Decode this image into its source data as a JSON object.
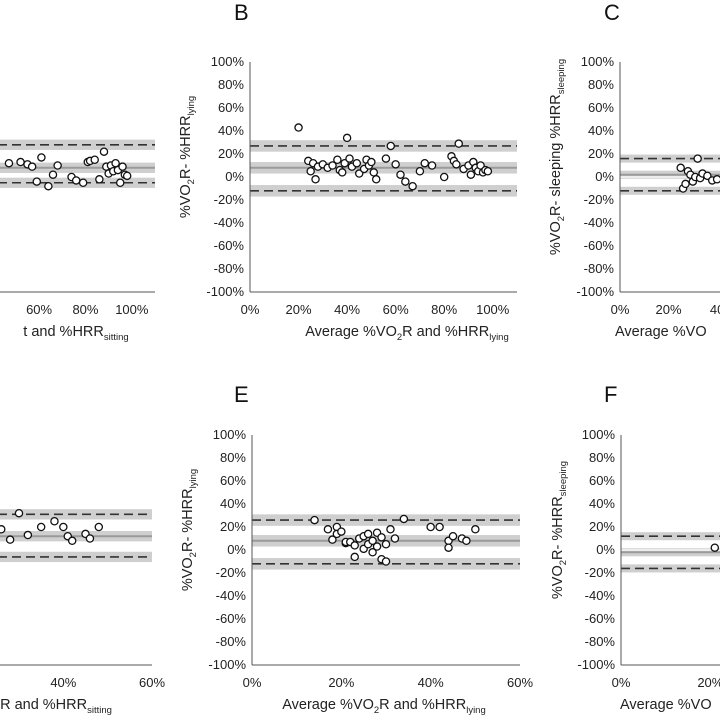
{
  "figure": {
    "panel_letters": [
      "B",
      "C",
      "E",
      "F"
    ]
  },
  "chart_data": [
    {
      "type": "scatter",
      "panel": "A",
      "xlabel_parts": [
        {
          "t": "t and %HRR"
        },
        {
          "t": "sitting",
          "sub": true
        }
      ],
      "xticks": [
        "60%",
        "80%",
        "100%"
      ],
      "xlim": [
        0,
        1.1
      ],
      "ylim": [
        -1.0,
        1.0
      ],
      "mean_bias": 0.08,
      "loa_upper": 0.28,
      "loa_lower": -0.05,
      "band_half_width": 0.09,
      "points": {
        "x": [
          0.2,
          0.22,
          0.25,
          0.3,
          0.33,
          0.36,
          0.4,
          0.43,
          0.47,
          0.52,
          0.55,
          0.57,
          0.59,
          0.61,
          0.64,
          0.66,
          0.68,
          0.74,
          0.76,
          0.79,
          0.81,
          0.82,
          0.84,
          0.86,
          0.88,
          0.89,
          0.9,
          0.91,
          0.92,
          0.93,
          0.94,
          0.95,
          0.96,
          0.97,
          0.98
        ],
        "y": [
          0.1,
          0.12,
          0.08,
          0.05,
          0.11,
          0.1,
          0.09,
          0.07,
          0.12,
          0.13,
          0.11,
          0.09,
          -0.04,
          0.17,
          -0.08,
          0.02,
          0.1,
          0.0,
          -0.03,
          -0.05,
          0.13,
          0.14,
          0.15,
          -0.02,
          0.22,
          0.09,
          0.03,
          0.1,
          0.05,
          0.12,
          0.06,
          -0.05,
          0.09,
          0.02,
          0.01
        ]
      }
    },
    {
      "type": "scatter",
      "panel": "B",
      "ylabel_parts": [
        {
          "t": "%VO"
        },
        {
          "t": "2",
          "sub": true
        },
        {
          "t": "R- %HRR"
        },
        {
          "t": "lying",
          "sub": true
        }
      ],
      "xlabel_parts": [
        {
          "t": "Average %VO"
        },
        {
          "t": "2",
          "sub": true
        },
        {
          "t": "R and %HRR"
        },
        {
          "t": "lying",
          "sub": true
        }
      ],
      "xticks": [
        "0%",
        "20%",
        "40%",
        "60%",
        "80%",
        "100%"
      ],
      "yticks": [
        "100%",
        "80%",
        "60%",
        "40%",
        "20%",
        "0%",
        "-20%",
        "-40%",
        "-60%",
        "-80%",
        "-100%"
      ],
      "xlim": [
        0,
        1.1
      ],
      "ylim": [
        -1.0,
        1.0
      ],
      "mean_bias": 0.08,
      "loa_upper": 0.27,
      "loa_lower": -0.12,
      "band_half_width": 0.1,
      "points": {
        "x": [
          0.2,
          0.24,
          0.25,
          0.26,
          0.27,
          0.28,
          0.3,
          0.32,
          0.34,
          0.36,
          0.37,
          0.38,
          0.39,
          0.4,
          0.41,
          0.42,
          0.44,
          0.45,
          0.47,
          0.48,
          0.49,
          0.5,
          0.51,
          0.52,
          0.56,
          0.58,
          0.6,
          0.62,
          0.64,
          0.67,
          0.7,
          0.72,
          0.75,
          0.8,
          0.83,
          0.84,
          0.85,
          0.86,
          0.88,
          0.9,
          0.91,
          0.92,
          0.93,
          0.94,
          0.95,
          0.96,
          0.97,
          0.98
        ],
        "y": [
          0.43,
          0.14,
          0.05,
          0.12,
          -0.02,
          0.09,
          0.11,
          0.08,
          0.1,
          0.15,
          0.06,
          0.04,
          0.12,
          0.34,
          0.16,
          0.09,
          0.12,
          0.03,
          0.07,
          0.15,
          0.1,
          0.13,
          0.04,
          -0.02,
          0.16,
          0.27,
          0.11,
          0.02,
          -0.04,
          -0.08,
          0.05,
          0.12,
          0.1,
          0.0,
          0.18,
          0.14,
          0.11,
          0.29,
          0.07,
          0.1,
          0.02,
          0.13,
          0.08,
          0.05,
          0.1,
          0.04,
          0.06,
          0.05
        ]
      }
    },
    {
      "type": "scatter",
      "panel": "C",
      "ylabel_parts": [
        {
          "t": "%VO"
        },
        {
          "t": "2",
          "sub": true
        },
        {
          "t": "R- sleeping %HRR"
        },
        {
          "t": "sleeping",
          "sub": true
        }
      ],
      "xlabel_parts": [
        {
          "t": "Average %VO"
        }
      ],
      "xticks": [
        "0%",
        "20%",
        "40"
      ],
      "yticks": [
        "100%",
        "80%",
        "60%",
        "40%",
        "20%",
        "0%",
        "-20%",
        "-40%",
        "-60%",
        "-80%",
        "-100%"
      ],
      "xlim": [
        0,
        1.1
      ],
      "ylim": [
        -1.0,
        1.0
      ],
      "mean_bias": 0.02,
      "loa_upper": 0.16,
      "loa_lower": -0.12,
      "band_half_width": 0.07,
      "points": {
        "x": [
          0.25,
          0.26,
          0.27,
          0.28,
          0.29,
          0.3,
          0.31,
          0.32,
          0.33,
          0.34,
          0.36,
          0.38,
          0.4,
          0.42
        ],
        "y": [
          0.08,
          -0.1,
          -0.06,
          0.05,
          0.02,
          -0.04,
          0.0,
          0.16,
          -0.01,
          0.03,
          0.01,
          -0.03,
          -0.02,
          -0.12
        ]
      }
    },
    {
      "type": "scatter",
      "panel": "D",
      "xlabel_parts": [
        {
          "t": "R and %HRR"
        },
        {
          "t": "sitting",
          "sub": true
        }
      ],
      "xticks": [
        "40%",
        "60%"
      ],
      "xlim": [
        0,
        0.6
      ],
      "ylim": [
        -1.0,
        1.0
      ],
      "mean_bias": 0.12,
      "loa_upper": 0.31,
      "loa_lower": -0.06,
      "band_half_width": 0.09,
      "points": {
        "x": [
          0.12,
          0.14,
          0.16,
          0.18,
          0.2,
          0.22,
          0.24,
          0.26,
          0.28,
          0.3,
          0.32,
          0.35,
          0.38,
          0.4,
          0.41,
          0.42,
          0.45,
          0.46,
          0.48
        ],
        "y": [
          0.1,
          0.15,
          0.05,
          0.08,
          0.2,
          0.0,
          0.12,
          0.18,
          0.09,
          0.32,
          0.13,
          0.2,
          0.25,
          0.2,
          0.12,
          0.08,
          0.14,
          0.1,
          0.2
        ]
      }
    },
    {
      "type": "scatter",
      "panel": "E",
      "ylabel_parts": [
        {
          "t": "%VO"
        },
        {
          "t": "2",
          "sub": true
        },
        {
          "t": "R- %HRR"
        },
        {
          "t": "lying",
          "sub": true
        }
      ],
      "xlabel_parts": [
        {
          "t": "Average %VO"
        },
        {
          "t": "2",
          "sub": true
        },
        {
          "t": "R and %HRR"
        },
        {
          "t": "lying",
          "sub": true
        }
      ],
      "xticks": [
        "0%",
        "20%",
        "40%",
        "60%"
      ],
      "yticks": [
        "100%",
        "80%",
        "60%",
        "40%",
        "20%",
        "0%",
        "-20%",
        "-40%",
        "-60%",
        "-80%",
        "-100%"
      ],
      "xlim": [
        0,
        0.6
      ],
      "ylim": [
        -1.0,
        1.0
      ],
      "mean_bias": 0.08,
      "loa_upper": 0.26,
      "loa_lower": -0.12,
      "band_half_width": 0.1,
      "points": {
        "x": [
          0.14,
          0.17,
          0.18,
          0.19,
          0.19,
          0.2,
          0.21,
          0.21,
          0.22,
          0.23,
          0.23,
          0.24,
          0.25,
          0.25,
          0.26,
          0.26,
          0.27,
          0.27,
          0.28,
          0.28,
          0.29,
          0.29,
          0.3,
          0.3,
          0.31,
          0.32,
          0.34,
          0.4,
          0.42,
          0.44,
          0.44,
          0.45,
          0.47,
          0.48,
          0.5
        ],
        "y": [
          0.26,
          0.18,
          0.09,
          0.2,
          0.14,
          0.16,
          0.06,
          0.07,
          0.07,
          0.04,
          -0.06,
          0.1,
          0.01,
          0.12,
          0.05,
          0.14,
          -0.02,
          0.08,
          0.15,
          0.03,
          -0.08,
          0.11,
          0.05,
          -0.1,
          0.18,
          0.1,
          0.27,
          0.2,
          0.2,
          0.08,
          0.02,
          0.12,
          0.1,
          0.08,
          0.18
        ]
      }
    },
    {
      "type": "scatter",
      "panel": "F",
      "ylabel_parts": [
        {
          "t": "%VO"
        },
        {
          "t": "2",
          "sub": true
        },
        {
          "t": "R- %HRR"
        },
        {
          "t": "sleeping",
          "sub": true
        }
      ],
      "xlabel_parts": [
        {
          "t": "Average %VO"
        }
      ],
      "xticks": [
        "0%",
        "20%"
      ],
      "yticks": [
        "100%",
        "80%",
        "60%",
        "40%",
        "20%",
        "0%",
        "-20%",
        "-40%",
        "-60%",
        "-80%",
        "-100%"
      ],
      "xlim": [
        0,
        0.6
      ],
      "ylim": [
        -1.0,
        1.0
      ],
      "mean_bias": -0.02,
      "loa_upper": 0.12,
      "loa_lower": -0.16,
      "band_half_width": 0.07,
      "points": {
        "x": [
          0.21,
          0.23
        ],
        "y": [
          0.02,
          0.0
        ]
      }
    }
  ]
}
